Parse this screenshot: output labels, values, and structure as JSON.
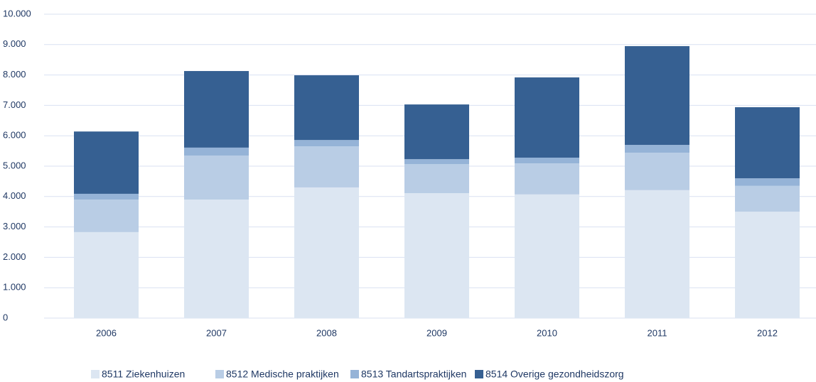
{
  "chart_data": {
    "type": "stacked_bar",
    "categories": [
      "2006",
      "2007",
      "2008",
      "2009",
      "2010",
      "2011",
      "2012"
    ],
    "series": [
      {
        "name": "8511 Ziekenhuizen",
        "color": "#dce6f2",
        "values": [
          2830,
          3900,
          4300,
          4110,
          4070,
          4210,
          3500
        ]
      },
      {
        "name": "8512 Medische praktijken",
        "color": "#b9cde5",
        "values": [
          1070,
          1450,
          1350,
          960,
          1020,
          1230,
          850
        ]
      },
      {
        "name": "8513 Tandartspraktijken",
        "color": "#95b3d7",
        "values": [
          190,
          260,
          210,
          160,
          190,
          260,
          250
        ]
      },
      {
        "name": "8514 Overige gezondheidszorg",
        "color": "#366092",
        "values": [
          2050,
          2520,
          2130,
          1800,
          2640,
          3250,
          2340
        ]
      }
    ],
    "ylim": [
      0,
      10000
    ],
    "yticks": [
      0,
      {
        "value": 1000,
        "label": "1.000"
      },
      {
        "value": 2000,
        "label": "2.000"
      },
      {
        "value": 3000,
        "label": "3.000"
      },
      {
        "value": 4000,
        "label": "4.000"
      },
      {
        "value": 5000,
        "label": "5.000"
      },
      {
        "value": 6000,
        "label": "6.000"
      },
      {
        "value": 7000,
        "label": "7.000"
      },
      {
        "value": 8000,
        "label": "8.000"
      },
      {
        "value": 9000,
        "label": "9.000"
      },
      {
        "value": 10000,
        "label": "10.000"
      }
    ],
    "grid": true,
    "legend": "bottom"
  }
}
